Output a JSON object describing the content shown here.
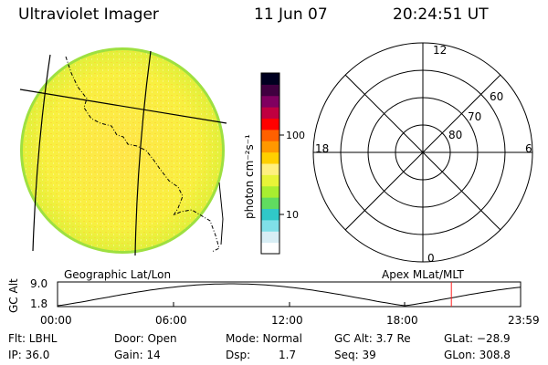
{
  "header": {
    "instrument": "Ultraviolet Imager",
    "date": "11 Jun 07",
    "time": "20:24:51 UT"
  },
  "colorbar": {
    "unit_label": "photon cm⁻²s⁻¹",
    "tick_100": "100",
    "tick_10": "10",
    "colors": [
      "#ffffff",
      "#d8eef5",
      "#80e0e8",
      "#30c8c8",
      "#60dc60",
      "#a8ee30",
      "#e8f438",
      "#fff080",
      "#ffd000",
      "#ff9800",
      "#ff6000",
      "#ff0000",
      "#c00040",
      "#800060",
      "#400040",
      "#000020"
    ]
  },
  "labels": {
    "geographic": "Geographic Lat/Lon",
    "apex": "Apex  MLat/MLT"
  },
  "polar": {
    "mlt_top": "12",
    "mlt_left": "18",
    "mlt_right": "6",
    "mlt_bottom": "0",
    "lat_60": "60",
    "lat_70": "70",
    "lat_80": "80"
  },
  "altitude_plot": {
    "ylabel": "GC Alt",
    "y_top": "9.0",
    "y_bottom": "1.8",
    "x_ticks": [
      "00:00",
      "06:00",
      "12:00",
      "18:00",
      "23:59"
    ],
    "marker_time_hours": 20.41,
    "marker_color": "#ff2020"
  },
  "status": {
    "flt": "Flt: LBHL",
    "ip": "IP: 36.0",
    "door": "Door: Open",
    "gain": "Gain: 14",
    "mode": "Mode: Normal",
    "dsp_label": "Dsp:",
    "dsp_value": "1.7",
    "gc_alt": "GC Alt: 3.7 Re",
    "seq": "Seq: 39",
    "glat": "GLat: −28.9",
    "glon": "GLon: 308.8"
  }
}
